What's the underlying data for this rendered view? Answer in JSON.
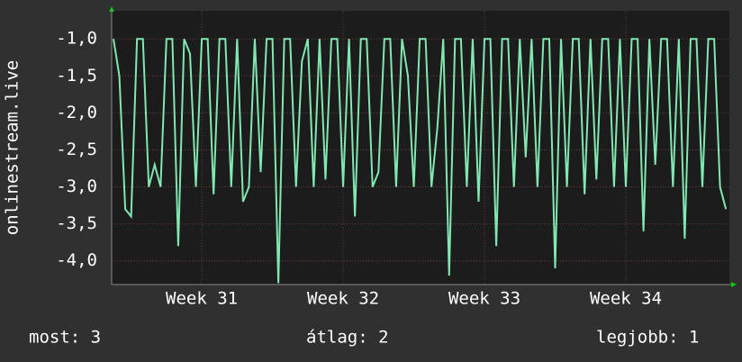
{
  "chart_data": {
    "type": "line",
    "y_label": "onlinestream.live",
    "categories": [
      null,
      null,
      null,
      null,
      null,
      null,
      null,
      null,
      null,
      null,
      null,
      null,
      null,
      null,
      null,
      "Week 31",
      null,
      null,
      null,
      null,
      null,
      null,
      null,
      null,
      null,
      null,
      null,
      null,
      null,
      null,
      null,
      null,
      null,
      null,
      null,
      null,
      null,
      null,
      null,
      "Week 32",
      null,
      null,
      null,
      null,
      null,
      null,
      null,
      null,
      null,
      null,
      null,
      null,
      null,
      null,
      null,
      null,
      null,
      null,
      null,
      null,
      null,
      null,
      null,
      "Week 33",
      null,
      null,
      null,
      null,
      null,
      null,
      null,
      null,
      null,
      null,
      null,
      null,
      null,
      null,
      null,
      null,
      null,
      null,
      null,
      null,
      null,
      null,
      null,
      "Week 34",
      null,
      null,
      null,
      null,
      null,
      null,
      null,
      null,
      null,
      null,
      null,
      null,
      null,
      null,
      null,
      null,
      null
    ],
    "series": [
      {
        "name": "onlinestream.live",
        "color": "#80e8b0",
        "values": [
          -1.0,
          -1.5,
          -3.3,
          -3.4,
          -1.0,
          -1.0,
          -3.0,
          -2.7,
          -3.0,
          -1.0,
          -1.0,
          -3.8,
          -1.0,
          -1.2,
          -3.0,
          -1.0,
          -1.0,
          -3.1,
          -1.0,
          -1.0,
          -3.0,
          -1.0,
          -3.2,
          -3.0,
          -1.0,
          -2.8,
          -1.0,
          -1.0,
          -4.3,
          -1.0,
          -1.0,
          -3.0,
          -1.3,
          -1.0,
          -3.0,
          -1.0,
          -2.9,
          -1.0,
          -1.0,
          -3.0,
          -1.0,
          -3.4,
          -1.0,
          -1.0,
          -3.0,
          -2.8,
          -1.0,
          -1.0,
          -3.0,
          -1.0,
          -1.5,
          -3.0,
          -1.0,
          -1.0,
          -3.0,
          -2.2,
          -1.0,
          -4.2,
          -1.0,
          -1.0,
          -3.0,
          -1.0,
          -3.2,
          -1.0,
          -1.0,
          -3.8,
          -1.0,
          -1.0,
          -3.0,
          -1.0,
          -2.6,
          -1.0,
          -3.0,
          -1.0,
          -1.0,
          -4.1,
          -1.0,
          -3.0,
          -1.0,
          -1.0,
          -3.1,
          -1.0,
          -2.9,
          -1.0,
          -1.0,
          -3.0,
          -1.0,
          -3.0,
          -1.0,
          -1.0,
          -3.6,
          -1.0,
          -2.7,
          -1.0,
          -1.0,
          -3.0,
          -1.0,
          -3.7,
          -1.0,
          -1.0,
          -3.0,
          -1.0,
          -1.0,
          -3.0,
          -3.3
        ]
      }
    ],
    "ylim": [
      -4.32,
      -0.62
    ],
    "yticks": [
      {
        "value": -4.0,
        "label": "-4,0"
      },
      {
        "value": -3.5,
        "label": "-3,5"
      },
      {
        "value": -3.0,
        "label": "-3,0"
      },
      {
        "value": -2.5,
        "label": "-2,5"
      },
      {
        "value": -2.0,
        "label": "-2,0"
      },
      {
        "value": -1.5,
        "label": "-1,5"
      },
      {
        "value": -1.0,
        "label": "-1,0"
      }
    ],
    "grid": true,
    "stats": [
      "most: 3",
      "átlag: 2",
      "legjobb: 1"
    ]
  }
}
